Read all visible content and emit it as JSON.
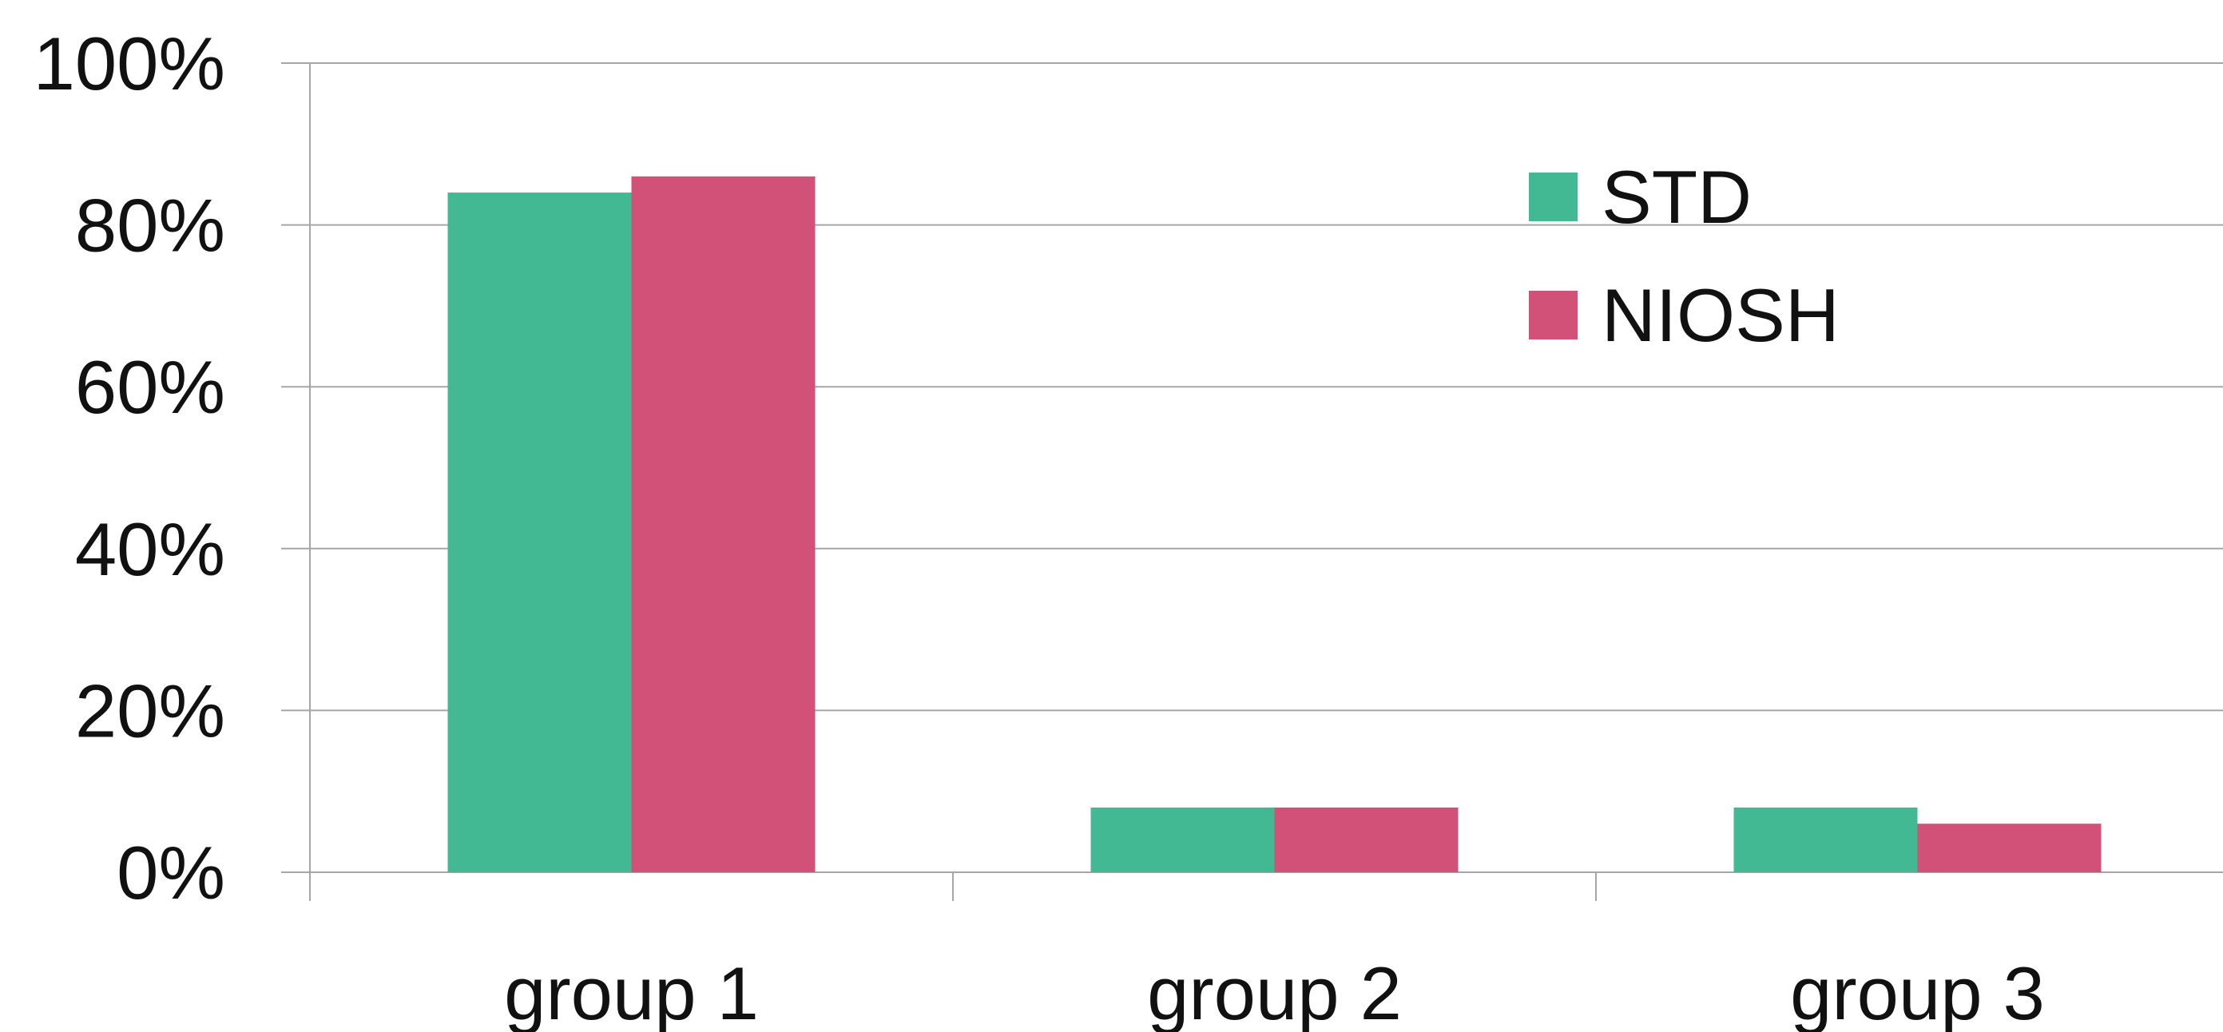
{
  "chart_data": {
    "type": "bar",
    "categories": [
      "group 1",
      "group 2",
      "group 3"
    ],
    "series": [
      {
        "name": "STD",
        "values": [
          84,
          8,
          8
        ],
        "color": "#42B992"
      },
      {
        "name": "NIOSH",
        "values": [
          86,
          8,
          6
        ],
        "color": "#D25178"
      }
    ],
    "yticks": [
      "0%",
      "20%",
      "40%",
      "60%",
      "80%",
      "100%"
    ],
    "ylim": [
      0,
      100
    ],
    "title": "",
    "xlabel": "",
    "ylabel": "",
    "grid": true,
    "legend_position": "top-right",
    "colors": {
      "grid": "#A6A6A6",
      "text": "#111111",
      "background": "#FFFFFF"
    }
  }
}
